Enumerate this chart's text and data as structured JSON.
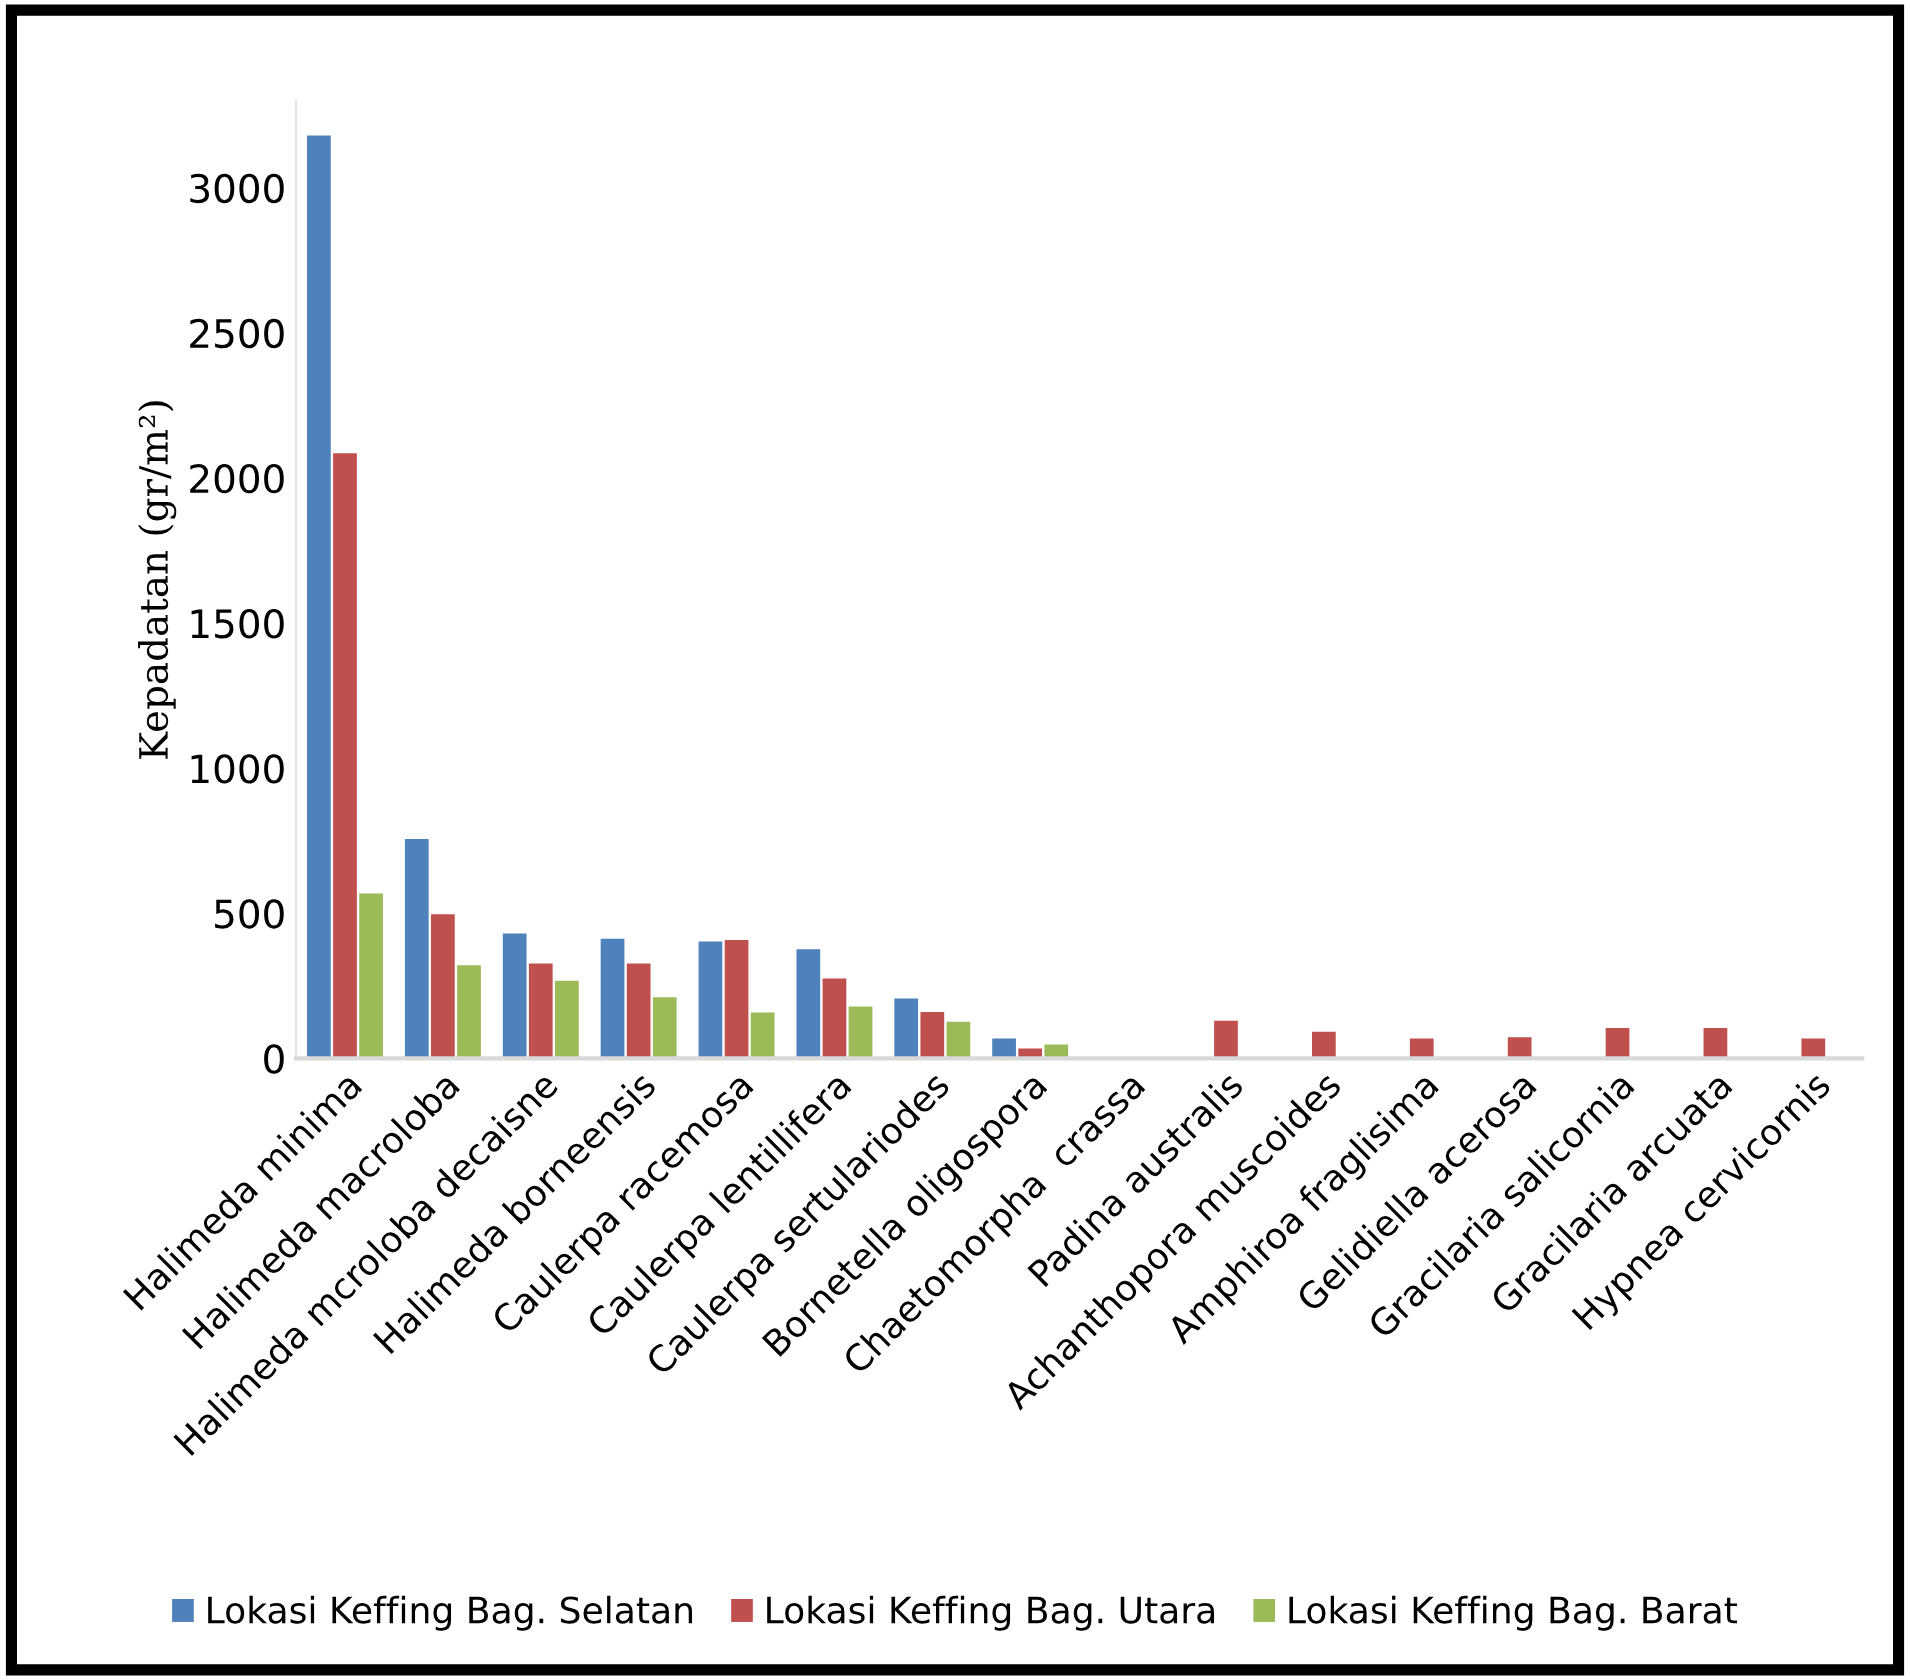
{
  "chart_data": {
    "type": "bar",
    "ylabel": "Kepadatan (gr/m²)",
    "categories": [
      "Halimeda minima",
      "Halimeda macroloba",
      "Halimeda mcroloba decaisne",
      "Halimeda borneensis",
      "Caulerpa racemosa",
      "Caulerpa lentillifera",
      "Caulerpa sertulariodes",
      "Bornetella oligospora",
      "Chaetomorpha  crassa",
      "Padina australis",
      "Achanthopora muscoides",
      "Amphiroa fraglisima",
      "Gelidiella acerosa",
      "Gracilaria salicornia",
      "Gracilaria arcuata",
      "Hypnea cervicornis"
    ],
    "series": [
      {
        "name": "Lokasi Keffing Bag. Selatan",
        "color": "#4f81bd",
        "values": [
          3180,
          756,
          430,
          412,
          403,
          376,
          206,
          69,
          0,
          0,
          0,
          0,
          0,
          0,
          0,
          0
        ]
      },
      {
        "name": "Lokasi Keffing Bag. Utara",
        "color": "#c0504d",
        "values": [
          2085,
          497,
          327,
          327,
          408,
          275,
          160,
          34,
          0,
          130,
          92,
          69,
          73,
          105,
          105,
          69
        ]
      },
      {
        "name": "Lokasi Keffing Bag. Barat",
        "color": "#9bbb59",
        "values": [
          568,
          321,
          268,
          211,
          158,
          179,
          126,
          48,
          0,
          0,
          0,
          0,
          0,
          0,
          0,
          0
        ]
      }
    ],
    "ylim": [
      0,
      3300
    ],
    "yticks": [
      0,
      500,
      1000,
      1500,
      2000,
      2500,
      3000
    ],
    "grid": false,
    "legend": "bottom"
  }
}
